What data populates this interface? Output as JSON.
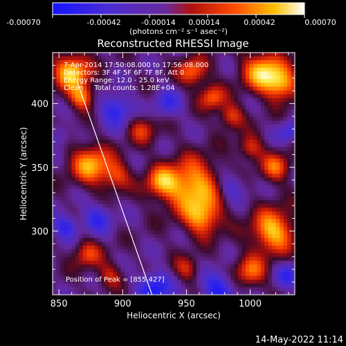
{
  "colorbar": {
    "ticks": [
      "-0.00070",
      "-0.00042",
      "-0.00014",
      "0.00014",
      "0.00042",
      "0.00070"
    ],
    "units": "(photons cm⁻² s⁻¹ asec⁻²)"
  },
  "title": "Reconstructed RHESSI Image",
  "annotations": [
    "7-Apr-2014 17:50:08.000 to 17:56:08.000",
    "Detectors: 3F 4F 5F 6F 7F 8F, Att 0",
    "Energy Range: 12.0 - 25.0 keV",
    "Clean     Total counts: 1.28E+04"
  ],
  "peak_label": "Position of Peak = [855,427]",
  "footer_date": "14-May-2022 11:14",
  "chart_data": {
    "type": "heatmap",
    "title": "Reconstructed RHESSI Image",
    "xlabel": "Heliocentric X (arcsec)",
    "ylabel": "Heliocentric Y (arcsec)",
    "xlim": [
      845,
      1035
    ],
    "ylim": [
      250,
      440
    ],
    "x_ticks": [
      850,
      900,
      950,
      1000
    ],
    "y_ticks": [
      300,
      350,
      400
    ],
    "colorbar_range": [
      -0.0007,
      0.0007
    ],
    "colormap": "blue-purple-red-yellow-white",
    "peak": [
      855,
      427
    ],
    "limb_line": [
      [
        864,
        418
      ],
      [
        923,
        250
      ]
    ],
    "blobs": [
      {
        "x": 860,
        "y": 425,
        "v": 1.0,
        "s": 10
      },
      {
        "x": 868,
        "y": 405,
        "v": 0.75,
        "s": 7
      },
      {
        "x": 875,
        "y": 352,
        "v": 0.85,
        "s": 11
      },
      {
        "x": 895,
        "y": 343,
        "v": 0.55,
        "s": 8
      },
      {
        "x": 915,
        "y": 380,
        "v": 0.5,
        "s": 8
      },
      {
        "x": 955,
        "y": 335,
        "v": 0.95,
        "s": 15
      },
      {
        "x": 930,
        "y": 338,
        "v": 0.7,
        "s": 9
      },
      {
        "x": 963,
        "y": 310,
        "v": 0.75,
        "s": 10
      },
      {
        "x": 1010,
        "y": 425,
        "v": 0.95,
        "s": 11
      },
      {
        "x": 1025,
        "y": 415,
        "v": 0.8,
        "s": 9
      },
      {
        "x": 955,
        "y": 425,
        "v": 0.7,
        "s": 8
      },
      {
        "x": 970,
        "y": 405,
        "v": 0.65,
        "s": 7
      },
      {
        "x": 985,
        "y": 390,
        "v": 0.6,
        "s": 7
      },
      {
        "x": 1000,
        "y": 365,
        "v": 0.55,
        "s": 7
      },
      {
        "x": 1020,
        "y": 350,
        "v": 0.65,
        "s": 8
      },
      {
        "x": 1018,
        "y": 300,
        "v": 0.95,
        "s": 12
      },
      {
        "x": 1000,
        "y": 268,
        "v": 0.65,
        "s": 9
      },
      {
        "x": 872,
        "y": 282,
        "v": 0.55,
        "s": 8
      },
      {
        "x": 890,
        "y": 265,
        "v": 0.45,
        "s": 7
      },
      {
        "x": 950,
        "y": 270,
        "v": 0.45,
        "s": 7
      },
      {
        "x": 880,
        "y": 310,
        "v": -0.55,
        "s": 8
      },
      {
        "x": 855,
        "y": 303,
        "v": -0.6,
        "s": 7
      },
      {
        "x": 895,
        "y": 395,
        "v": -0.65,
        "s": 9
      },
      {
        "x": 935,
        "y": 400,
        "v": -0.45,
        "s": 8
      },
      {
        "x": 925,
        "y": 255,
        "v": -0.75,
        "s": 9
      },
      {
        "x": 975,
        "y": 255,
        "v": -0.7,
        "s": 9
      },
      {
        "x": 985,
        "y": 335,
        "v": -0.45,
        "s": 8
      },
      {
        "x": 1030,
        "y": 265,
        "v": -0.5,
        "s": 7
      },
      {
        "x": 1030,
        "y": 378,
        "v": -0.45,
        "s": 6
      },
      {
        "x": 850,
        "y": 375,
        "v": -0.35,
        "s": 6
      }
    ]
  }
}
